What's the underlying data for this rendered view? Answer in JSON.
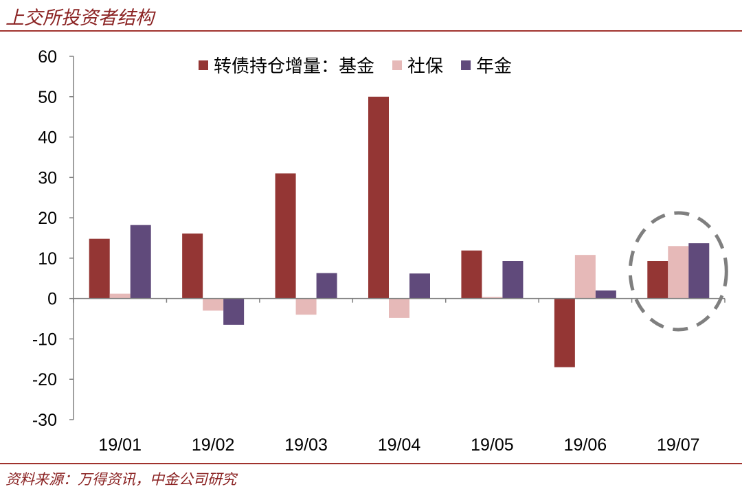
{
  "header": {
    "title": "上交所投资者结构"
  },
  "footer": {
    "source": "资料来源：万得资讯，中金公司研究"
  },
  "colors": {
    "accent": "#8b2323",
    "rule": "#a0322d"
  },
  "chart_data": {
    "type": "bar",
    "title": "",
    "xlabel": "",
    "ylabel": "",
    "legend_prefix": "转债持仓增量：",
    "legend_placement": "top",
    "categories": [
      "19/01",
      "19/02",
      "19/03",
      "19/04",
      "19/05",
      "19/06",
      "19/07"
    ],
    "ylim": [
      -30,
      60
    ],
    "yticks": [
      -30,
      -20,
      -10,
      0,
      10,
      20,
      30,
      40,
      50,
      60
    ],
    "grid": false,
    "highlight_category": "19/07",
    "series": [
      {
        "name": "基金",
        "color": "#943634",
        "values": [
          14.8,
          16.1,
          31.0,
          50.0,
          11.9,
          -17.0,
          9.3
        ]
      },
      {
        "name": "社保",
        "color": "#e6b9b8",
        "values": [
          1.2,
          -3.0,
          -4.0,
          -4.8,
          0.4,
          10.8,
          13.0
        ]
      },
      {
        "name": "年金",
        "color": "#604a7b",
        "values": [
          18.2,
          -6.5,
          6.3,
          6.2,
          9.3,
          2.0,
          13.7
        ]
      }
    ]
  }
}
